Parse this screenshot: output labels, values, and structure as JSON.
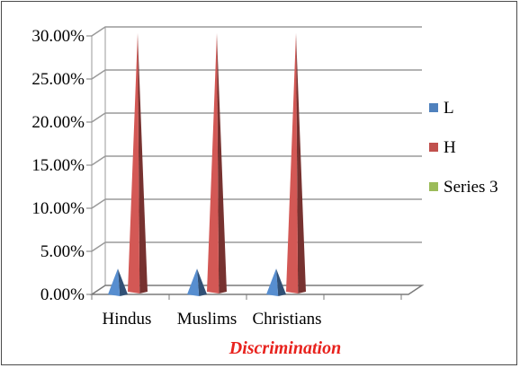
{
  "chart_data": {
    "type": "bar",
    "style": "3d-cone",
    "categories": [
      "Hindus",
      "Muslims",
      "Christians"
    ],
    "series": [
      {
        "name": "L",
        "values": [
          0.03,
          0.03,
          0.03
        ],
        "color": "#4f81bd"
      },
      {
        "name": "H",
        "values": [
          0.3,
          0.3,
          0.3
        ],
        "color": "#c0504d"
      },
      {
        "name": "Series 3",
        "values": [
          0,
          0,
          0
        ],
        "color": "#9bbb59"
      }
    ],
    "yticks": [
      "0.00%",
      "5.00%",
      "10.00%",
      "15.00%",
      "20.00%",
      "25.00%",
      "30.00%"
    ],
    "ylim": [
      0,
      0.3
    ],
    "xlabel": "Discrimination",
    "ylabel": "",
    "title": "",
    "grid": true,
    "legend": "right"
  }
}
